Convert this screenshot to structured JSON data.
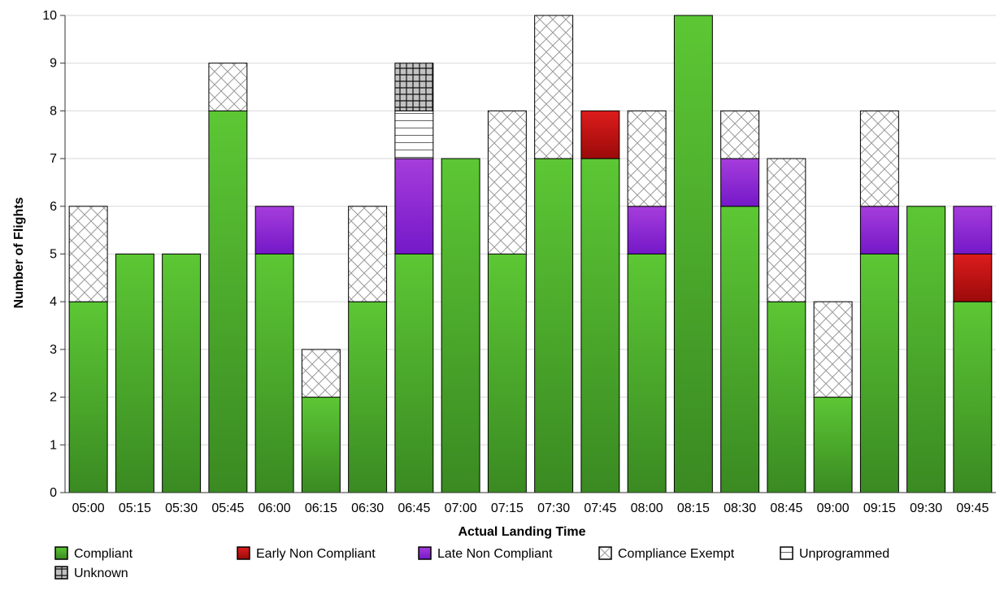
{
  "chart_data": {
    "type": "bar",
    "stacked": true,
    "title": "",
    "xlabel": "Actual Landing Time",
    "ylabel": "Number of Flights",
    "ylim": [
      0,
      10
    ],
    "yticks": [
      "0",
      "1",
      "2",
      "3",
      "4",
      "5",
      "6",
      "7",
      "8",
      "9",
      "10"
    ],
    "grid": "horizontal",
    "legend_position": "bottom-left",
    "categories": [
      "05:00",
      "05:15",
      "05:30",
      "05:45",
      "06:00",
      "06:15",
      "06:30",
      "06:45",
      "07:00",
      "07:15",
      "07:30",
      "07:45",
      "08:00",
      "08:15",
      "08:30",
      "08:45",
      "09:00",
      "09:15",
      "09:30",
      "09:45"
    ],
    "series": [
      {
        "name": "Compliant",
        "key": "compliant",
        "color_top": "#5cc734",
        "color_bottom": "#3a8a22",
        "pattern": "solid",
        "values": [
          4,
          5,
          5,
          8,
          5,
          2,
          4,
          5,
          7,
          5,
          7,
          7,
          5,
          10,
          6,
          4,
          2,
          5,
          6,
          4
        ]
      },
      {
        "name": "Early Non Compliant",
        "key": "early",
        "color_top": "#dd1c1c",
        "color_bottom": "#9b0a0a",
        "pattern": "solid",
        "values": [
          0,
          0,
          0,
          0,
          0,
          0,
          0,
          0,
          0,
          0,
          0,
          1,
          0,
          0,
          0,
          0,
          0,
          0,
          0,
          1
        ]
      },
      {
        "name": "Late Non Compliant",
        "key": "late",
        "color_top": "#a63ddc",
        "color_bottom": "#7418c8",
        "pattern": "solid",
        "values": [
          0,
          0,
          0,
          0,
          1,
          0,
          0,
          2,
          0,
          0,
          0,
          0,
          1,
          0,
          1,
          0,
          0,
          1,
          0,
          1
        ]
      },
      {
        "name": "Compliance Exempt",
        "key": "exempt",
        "color_top": "#ffffff",
        "color_bottom": "#ffffff",
        "pattern": "crosshatch",
        "values": [
          2,
          0,
          0,
          1,
          0,
          1,
          2,
          0,
          0,
          3,
          3,
          0,
          2,
          0,
          1,
          3,
          2,
          2,
          0,
          0
        ]
      },
      {
        "name": "Unprogrammed",
        "key": "unprogrammed",
        "color_top": "#ffffff",
        "color_bottom": "#ffffff",
        "pattern": "horizontal-lines",
        "values": [
          0,
          0,
          0,
          0,
          0,
          0,
          0,
          1,
          0,
          0,
          0,
          0,
          0,
          0,
          0,
          0,
          0,
          0,
          0,
          0
        ]
      },
      {
        "name": "Unknown",
        "key": "unknown",
        "color_top": "#c2c2c2",
        "color_bottom": "#c2c2c2",
        "pattern": "grid",
        "values": [
          0,
          0,
          0,
          0,
          0,
          0,
          0,
          1,
          0,
          0,
          0,
          0,
          0,
          0,
          0,
          0,
          0,
          0,
          0,
          0
        ]
      }
    ]
  }
}
